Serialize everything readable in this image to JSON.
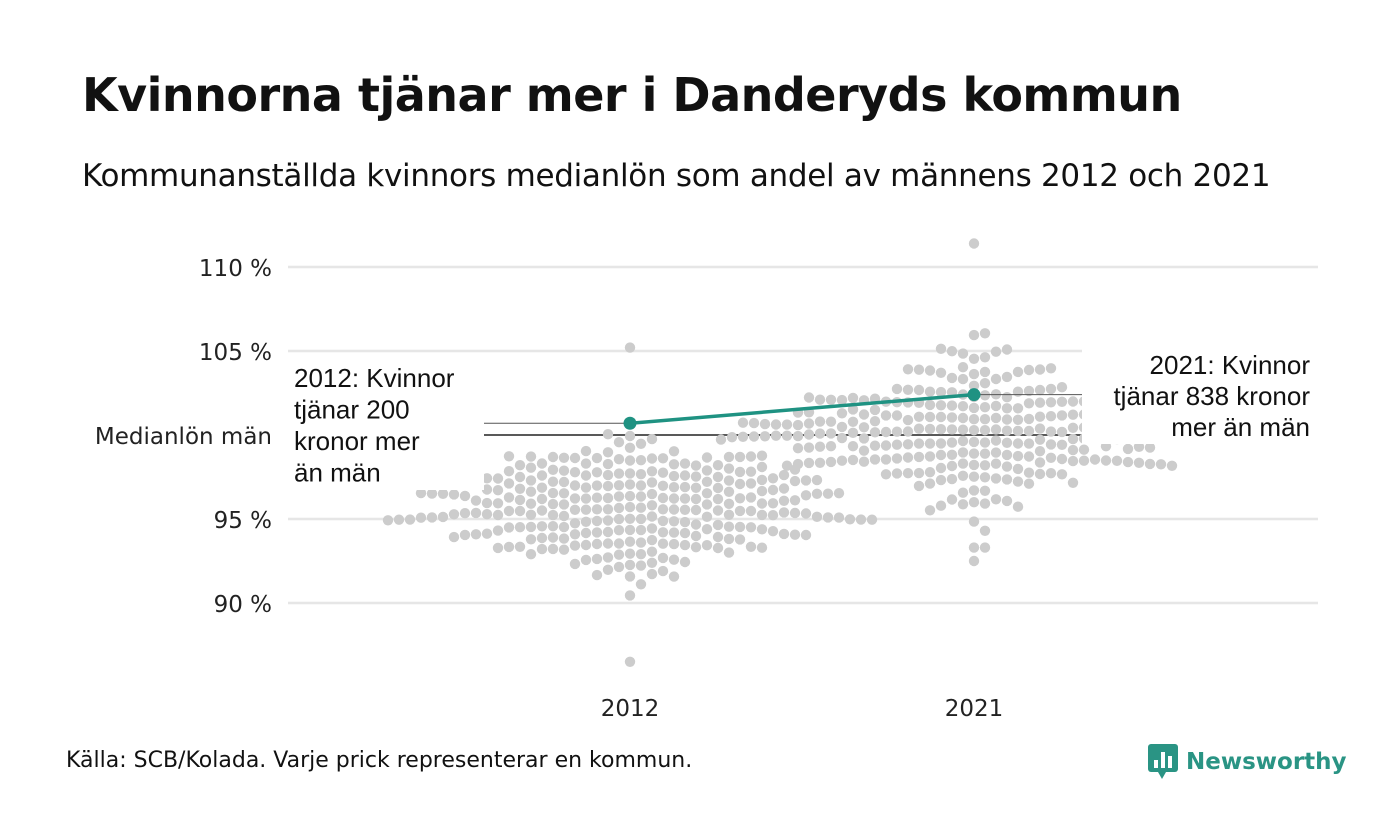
{
  "title": "Kvinnorna tjänar mer i Danderyds kommun",
  "subtitle": "Kommunanställda kvinnors medianlön som andel av männens 2012 och 2021",
  "source": "Källa: SCB/Kolada. Varje prick representerar en kommun.",
  "brand": {
    "name": "Newsworthy",
    "icon": "newsworthy-bar-chart-icon",
    "color": "#2a9484"
  },
  "colors": {
    "dots": "#cccccc",
    "highlight": "#1f9282",
    "grid": "#e6e6e6",
    "reference": "#222222"
  },
  "chart_data": {
    "type": "scatter",
    "title": "Kvinnorna tjänar mer i Danderyds kommun",
    "categories": [
      "2012",
      "2021"
    ],
    "y_ticks": [
      {
        "value": 110,
        "label": "110 %"
      },
      {
        "value": 105,
        "label": "105 %"
      },
      {
        "value": 95,
        "label": "95 %"
      },
      {
        "value": 90,
        "label": "90 %"
      }
    ],
    "reference_line": {
      "value": 100,
      "label": "Medianlön män"
    },
    "ylim": [
      86,
      112
    ],
    "grid": true,
    "highlight": {
      "name": "Danderyd",
      "values": [
        100.7,
        102.4
      ],
      "annotations": [
        "2012: Kvinnor tjänar 200 kronor mer än män",
        "2021: Kvinnor tjänar 838 kronor mer än män"
      ],
      "annotation_lines": [
        [
          "2012: Kvinnor",
          "tjänar 200",
          "kronor mer",
          "än män"
        ],
        [
          "2021: Kvinnor",
          "tjänar 838 kronor",
          "mer än män"
        ]
      ]
    },
    "distribution": {
      "note": "Each dot represents one municipality (approx. 290 per year).",
      "2012": {
        "n": 290,
        "median": 95.7,
        "min": 86.5,
        "max": 105.2,
        "q1": 94.4,
        "q3": 97.1
      },
      "2021": {
        "n": 290,
        "median": 100.3,
        "min": 92.5,
        "max": 111.4,
        "q1": 99.0,
        "q3": 101.8
      }
    }
  }
}
